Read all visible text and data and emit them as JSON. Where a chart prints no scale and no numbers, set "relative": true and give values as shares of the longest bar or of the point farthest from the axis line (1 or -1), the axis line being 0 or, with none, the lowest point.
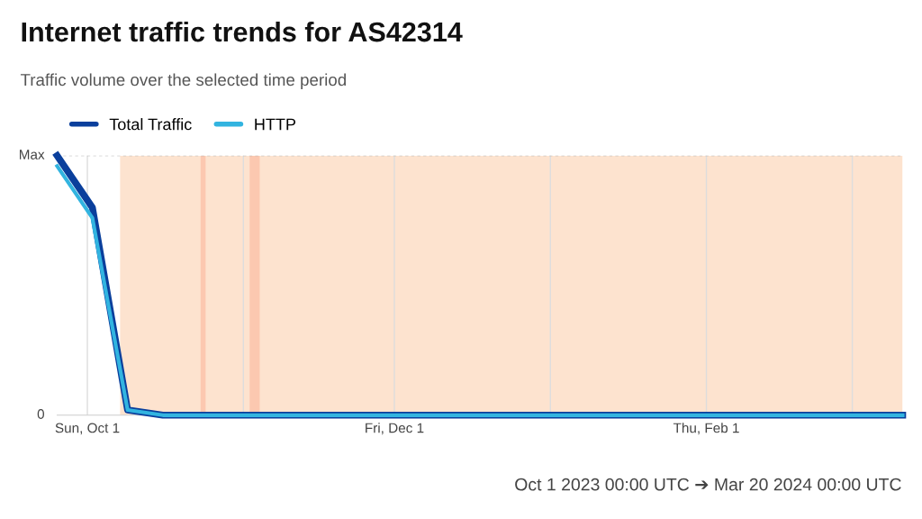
{
  "chart_data": {
    "type": "line",
    "title": "Internet traffic trends for AS42314",
    "subtitle": "Traffic volume over the selected time period",
    "annotations": [
      "Oct 1 2023 00:00 UTC ➔ Mar 20 2024 00:00 UTC",
      "Max",
      "0"
    ],
    "relative": true,
    "ref_lines": [
      {
        "axis": "y",
        "value": 1,
        "line_style": "dashed",
        "color": "#aaaaaa"
      }
    ],
    "series": [
      {
        "name": "Total Traffic",
        "color": "#0a3f9c",
        "x": [
          "2023-09-25",
          "2023-10-02",
          "2023-10-09",
          "2023-10-16",
          "2024-03-11"
        ],
        "values": [
          1.0,
          0.8,
          0.02,
          0,
          0
        ]
      },
      {
        "name": "HTTP",
        "color": "#32b4e0",
        "x": [
          "2023-09-25",
          "2023-10-02",
          "2023-10-09",
          "2023-10-16",
          "2024-03-11"
        ],
        "values": [
          0.96,
          0.76,
          0.02,
          0,
          0
        ]
      }
    ],
    "xlim": [
      "2023-09-25",
      "2024-03-11"
    ],
    "xticks": [
      {
        "value": "2023-10-01",
        "label": "Sun, Oct 1"
      },
      {
        "value": "2023-11-01",
        "label": null
      },
      {
        "value": "2023-12-01",
        "label": "Fri, Dec 1"
      },
      {
        "value": "2024-01-01",
        "label": null
      },
      {
        "value": "2024-02-01",
        "label": "Thu, Feb 1"
      },
      {
        "value": "2024-03-01",
        "label": null
      }
    ],
    "bands": [
      {
        "axis": "x",
        "from": "2023-10-07T12:00",
        "to": "2024-03-11",
        "color": "#fde3cf"
      },
      {
        "axis": "x",
        "from": "2023-10-23T12:00",
        "to": "2023-10-24T12:00",
        "color": "#fcc8b0"
      },
      {
        "axis": "x",
        "from": "2023-11-02T06:00",
        "to": "2023-11-04T06:00",
        "color": "#fcc8b0"
      }
    ],
    "grid": "x",
    "legend": "top left",
    "line_style": "solid",
    "marker": "none"
  }
}
